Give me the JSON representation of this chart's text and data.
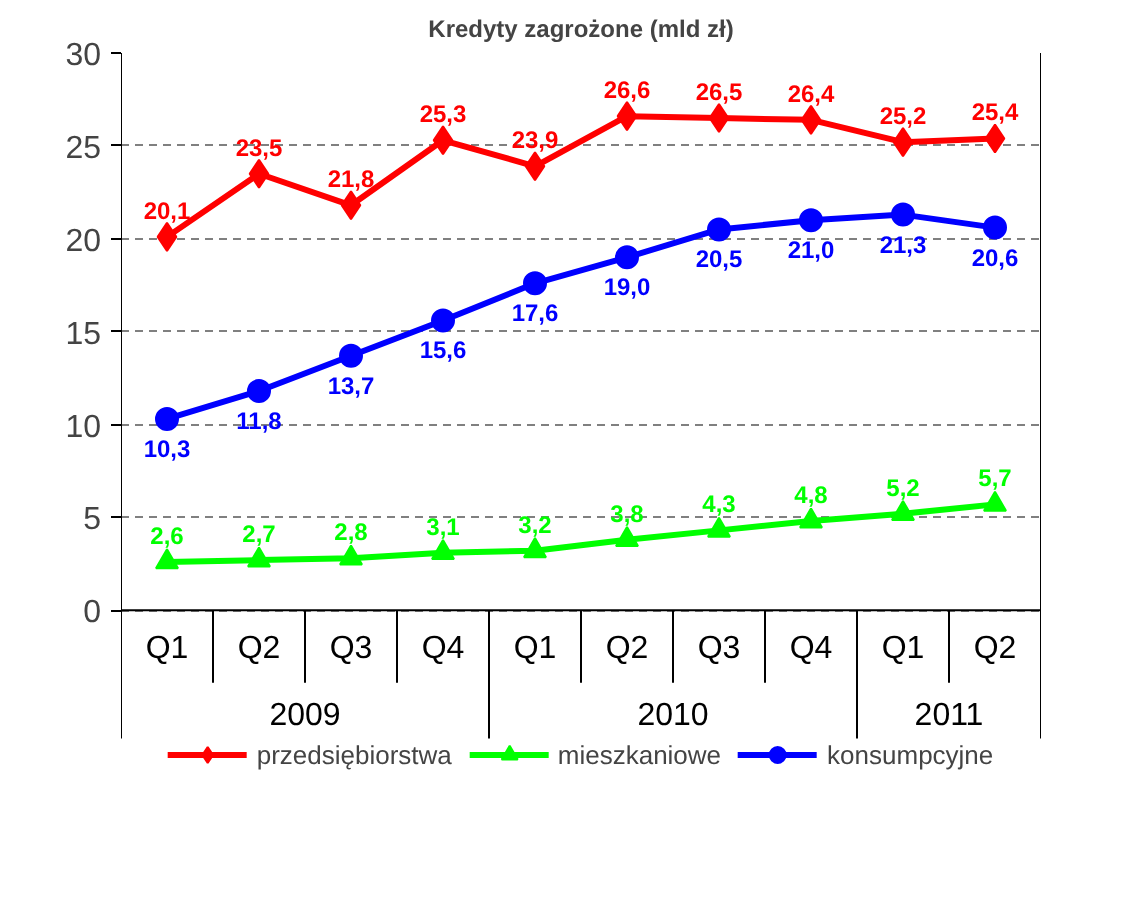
{
  "chart_data": {
    "type": "line",
    "title": "Kredyty zagrożone (mld zł)",
    "categories": [
      "Q1",
      "Q2",
      "Q3",
      "Q4",
      "Q1",
      "Q2",
      "Q3",
      "Q4",
      "Q1",
      "Q2"
    ],
    "annotations": [
      "2009",
      "2010",
      "2011"
    ],
    "ylim": [
      0,
      30
    ],
    "yticks": [
      0,
      5,
      10,
      15,
      20,
      25,
      30
    ],
    "grid": "y",
    "legend": "bottom",
    "series": [
      {
        "name": "przedsiębiorstwa",
        "color": "#ff0000",
        "marker": "diamond",
        "values": [
          20.1,
          23.5,
          21.8,
          25.3,
          23.9,
          26.6,
          26.5,
          26.4,
          25.2,
          25.4
        ],
        "value_labels": [
          "20,1",
          "23,5",
          "21,8",
          "25,3",
          "23,9",
          "26,6",
          "26,5",
          "26,4",
          "25,2",
          "25,4"
        ]
      },
      {
        "name": "mieszkaniowe",
        "color": "#00ff00",
        "marker": "triangle",
        "values": [
          2.6,
          2.7,
          2.8,
          3.1,
          3.2,
          3.8,
          4.3,
          4.8,
          5.2,
          5.7
        ],
        "value_labels": [
          "2,6",
          "2,7",
          "2,8",
          "3,1",
          "3,2",
          "3,8",
          "4,3",
          "4,8",
          "5,2",
          "5,7"
        ]
      },
      {
        "name": "konsumpcyjne",
        "color": "#0000ff",
        "marker": "circle",
        "values": [
          10.3,
          11.8,
          13.7,
          15.6,
          17.6,
          19.0,
          20.5,
          21.0,
          21.3,
          20.6
        ],
        "value_labels": [
          "10,3",
          "11,8",
          "13,7",
          "15,6",
          "17,6",
          "19,0",
          "20,5",
          "21,0",
          "21,3",
          "20,6"
        ]
      }
    ]
  }
}
